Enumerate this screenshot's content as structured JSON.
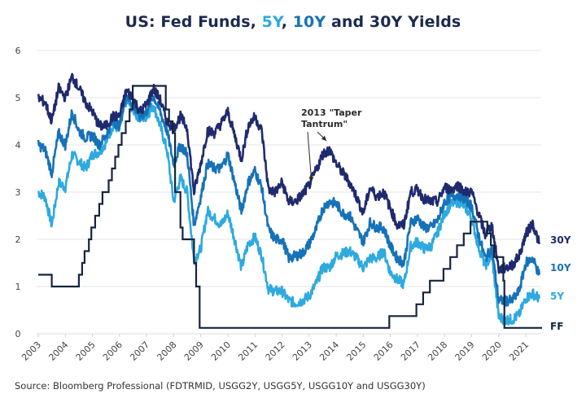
{
  "title": {
    "prefix": "US: Fed Funds, ",
    "part5": "5Y",
    "sep": ", ",
    "part10": "10Y",
    "suffix": " and 30Y Yields"
  },
  "source": "Source: Bloomberg Professional (FDTRMID, USGG2Y, USGG5Y, USGG10Y and USGG30Y)",
  "chart_data": {
    "type": "line",
    "title": "US: Fed Funds, 5Y, 10Y and 30Y Yields",
    "xlabel": "",
    "ylabel": "",
    "xlim": [
      2003.0,
      2021.6
    ],
    "ylim": [
      0,
      6
    ],
    "yticks": [
      0,
      1,
      2,
      3,
      4,
      5,
      6
    ],
    "xticks": [
      "2003",
      "2004",
      "2005",
      "2006",
      "2007",
      "2008",
      "2009",
      "2010",
      "2011",
      "2012",
      "2013",
      "2014",
      "2015",
      "2016",
      "2017",
      "2018",
      "2019",
      "2020",
      "2021"
    ],
    "grid": true,
    "legend": "right-end labels",
    "x": [
      2003.0,
      2003.25,
      2003.5,
      2003.75,
      2004.0,
      2004.25,
      2004.5,
      2004.75,
      2005.0,
      2005.25,
      2005.5,
      2005.75,
      2006.0,
      2006.25,
      2006.5,
      2006.75,
      2007.0,
      2007.25,
      2007.5,
      2007.75,
      2008.0,
      2008.25,
      2008.5,
      2008.75,
      2009.0,
      2009.25,
      2009.5,
      2009.75,
      2010.0,
      2010.25,
      2010.5,
      2010.75,
      2011.0,
      2011.25,
      2011.5,
      2011.75,
      2012.0,
      2012.25,
      2012.5,
      2012.75,
      2013.0,
      2013.25,
      2013.5,
      2013.75,
      2014.0,
      2014.25,
      2014.5,
      2014.75,
      2015.0,
      2015.25,
      2015.5,
      2015.75,
      2016.0,
      2016.25,
      2016.5,
      2016.75,
      2017.0,
      2017.25,
      2017.5,
      2017.75,
      2018.0,
      2018.25,
      2018.5,
      2018.75,
      2019.0,
      2019.25,
      2019.5,
      2019.75,
      2020.0,
      2020.25,
      2020.5,
      2020.75,
      2021.0,
      2021.25,
      2021.5
    ],
    "series": [
      {
        "name": "30Y",
        "color": "#1f2a6e",
        "values": [
          5.0,
          4.9,
          4.5,
          5.2,
          5.0,
          5.45,
          5.2,
          4.9,
          4.7,
          4.4,
          4.4,
          4.6,
          4.6,
          5.15,
          5.0,
          4.7,
          4.85,
          5.2,
          4.95,
          4.5,
          4.35,
          4.6,
          4.35,
          3.0,
          3.6,
          4.3,
          4.25,
          4.45,
          4.7,
          4.2,
          3.7,
          4.4,
          4.6,
          4.3,
          3.05,
          3.0,
          3.2,
          2.8,
          2.8,
          2.95,
          3.15,
          3.45,
          3.8,
          3.9,
          3.6,
          3.4,
          3.2,
          2.9,
          2.55,
          3.1,
          2.9,
          3.0,
          2.65,
          2.3,
          2.3,
          3.0,
          3.05,
          2.85,
          2.8,
          2.8,
          3.1,
          3.05,
          3.15,
          3.0,
          3.0,
          2.55,
          2.1,
          2.3,
          1.35,
          1.4,
          1.45,
          1.65,
          2.1,
          2.35,
          1.9
        ]
      },
      {
        "name": "10Y",
        "color": "#1672b8",
        "values": [
          4.0,
          3.9,
          3.4,
          4.25,
          4.0,
          4.7,
          4.3,
          4.15,
          4.2,
          4.0,
          4.2,
          4.5,
          4.4,
          5.05,
          4.85,
          4.6,
          4.7,
          5.05,
          4.7,
          4.3,
          3.6,
          4.0,
          3.8,
          2.3,
          2.9,
          3.6,
          3.5,
          3.5,
          3.8,
          3.2,
          2.6,
          3.2,
          3.45,
          3.1,
          2.2,
          2.0,
          2.0,
          1.6,
          1.65,
          1.7,
          1.9,
          2.2,
          2.65,
          2.8,
          2.75,
          2.55,
          2.5,
          2.2,
          1.95,
          2.35,
          2.25,
          2.25,
          1.85,
          1.6,
          1.5,
          2.35,
          2.45,
          2.25,
          2.25,
          2.4,
          2.8,
          2.9,
          2.95,
          2.85,
          2.7,
          2.1,
          1.6,
          1.8,
          0.7,
          0.7,
          0.7,
          0.9,
          1.5,
          1.6,
          1.25
        ]
      },
      {
        "name": "5Y",
        "color": "#2eaadf",
        "values": [
          3.0,
          2.9,
          2.3,
          3.2,
          3.1,
          3.8,
          3.65,
          3.5,
          3.8,
          3.85,
          4.05,
          4.4,
          4.35,
          4.95,
          4.75,
          4.55,
          4.6,
          4.85,
          4.4,
          3.9,
          2.8,
          3.3,
          3.0,
          1.55,
          1.8,
          2.6,
          2.45,
          2.3,
          2.55,
          2.0,
          1.4,
          1.9,
          2.05,
          1.65,
          0.95,
          0.9,
          0.9,
          0.7,
          0.65,
          0.7,
          0.8,
          1.05,
          1.4,
          1.4,
          1.65,
          1.7,
          1.75,
          1.6,
          1.4,
          1.6,
          1.6,
          1.75,
          1.3,
          1.15,
          1.05,
          1.85,
          1.95,
          1.8,
          1.85,
          2.15,
          2.55,
          2.75,
          2.8,
          2.7,
          2.45,
          1.85,
          1.45,
          1.65,
          0.35,
          0.3,
          0.3,
          0.4,
          0.75,
          0.85,
          0.75
        ]
      },
      {
        "name": "FF",
        "color": "#16243f",
        "type": "step",
        "steps": [
          [
            2003.0,
            1.25
          ],
          [
            2003.5,
            1.0
          ],
          [
            2004.5,
            1.25
          ],
          [
            2004.62,
            1.5
          ],
          [
            2004.71,
            1.75
          ],
          [
            2004.87,
            2.0
          ],
          [
            2004.96,
            2.25
          ],
          [
            2005.1,
            2.5
          ],
          [
            2005.25,
            2.75
          ],
          [
            2005.37,
            3.0
          ],
          [
            2005.6,
            3.25
          ],
          [
            2005.72,
            3.5
          ],
          [
            2005.84,
            3.75
          ],
          [
            2005.96,
            4.0
          ],
          [
            2006.08,
            4.25
          ],
          [
            2006.23,
            4.5
          ],
          [
            2006.37,
            4.75
          ],
          [
            2006.49,
            5.25
          ],
          [
            2007.71,
            4.75
          ],
          [
            2007.83,
            4.5
          ],
          [
            2007.96,
            4.25
          ],
          [
            2008.05,
            3.0
          ],
          [
            2008.25,
            2.25
          ],
          [
            2008.33,
            2.0
          ],
          [
            2008.75,
            1.5
          ],
          [
            2008.83,
            1.0
          ],
          [
            2008.96,
            0.125
          ],
          [
            2015.96,
            0.375
          ],
          [
            2016.96,
            0.625
          ],
          [
            2017.21,
            0.875
          ],
          [
            2017.46,
            1.125
          ],
          [
            2017.96,
            1.375
          ],
          [
            2018.21,
            1.625
          ],
          [
            2018.46,
            1.875
          ],
          [
            2018.71,
            2.125
          ],
          [
            2018.96,
            2.375
          ],
          [
            2019.58,
            2.125
          ],
          [
            2019.71,
            1.875
          ],
          [
            2019.83,
            1.625
          ],
          [
            2020.17,
            1.125
          ],
          [
            2020.21,
            0.125
          ],
          [
            2021.6,
            0.125
          ]
        ]
      }
    ],
    "end_labels": [
      "30Y",
      "10Y",
      "5Y",
      "FF"
    ],
    "annotation": {
      "line1": "2013 \"Taper",
      "line2": "Tantrum\"",
      "points_to": [
        [
          2013.0,
          3.15
        ],
        [
          2013.7,
          4.0
        ]
      ]
    }
  }
}
